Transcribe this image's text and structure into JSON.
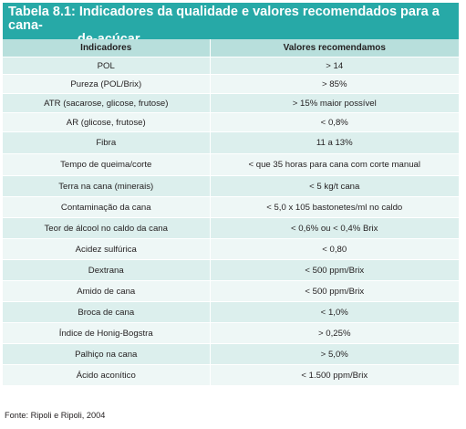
{
  "table": {
    "title_line1": "Tabela 8.1: Indicadores da qualidade e valores recomendados para a cana-",
    "title_line2": "de-açúcar",
    "headers": [
      "Indicadores",
      "Valores recomendamos"
    ],
    "rows": [
      [
        "POL",
        "> 14"
      ],
      [
        "Pureza (POL/Brix)",
        "> 85%"
      ],
      [
        "ATR (sacarose, glicose, frutose)",
        "> 15% maior possível"
      ],
      [
        "AR (glicose, frutose)",
        "< 0,8%"
      ],
      [
        "Fibra",
        "11 a 13%"
      ],
      [
        "Tempo de queima/corte",
        "< que 35 horas para cana com corte manual"
      ],
      [
        "Terra na cana (minerais)",
        "< 5 kg/t cana"
      ],
      [
        "Contaminação da cana",
        "< 5,0 x 105 bastonetes/ml no caldo"
      ],
      [
        "Teor de álcool no caldo da cana",
        "< 0,6% ou < 0,4% Brix"
      ],
      [
        "Acidez sulfúrica",
        "< 0,80"
      ],
      [
        "Dextrana",
        "< 500 ppm/Brix"
      ],
      [
        "Amido de cana",
        "< 500 ppm/Brix"
      ],
      [
        "Broca de cana",
        "< 1,0%"
      ],
      [
        "Índice de Honig-Bogstra",
        "> 0,25%"
      ],
      [
        "Palhiço na cana",
        "> 5,0%"
      ],
      [
        "Ácido aconítico",
        "< 1.500 ppm/Brix"
      ]
    ],
    "source": "Fonte: Ripoli e Ripoli, 2004"
  },
  "colors": {
    "title_bg": "#27a9a7",
    "header_bg": "#b8dfdc",
    "row_odd": "#dcefed",
    "row_even": "#eef7f6"
  }
}
